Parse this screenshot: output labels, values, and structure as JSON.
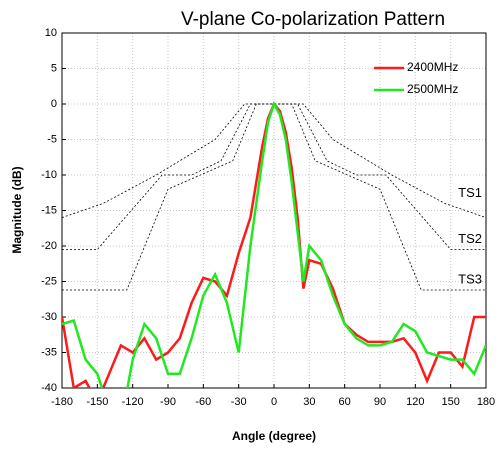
{
  "chart_data": {
    "type": "line",
    "title": "V-plane Co-polarization Pattern",
    "xlabel": "Angle (degree)",
    "ylabel": "Magnitude (dB)",
    "x": [
      -180,
      -170,
      -160,
      -150,
      -140,
      -130,
      -120,
      -110,
      -100,
      -90,
      -80,
      -70,
      -60,
      -50,
      -40,
      -30,
      -20,
      -15,
      -10,
      -5,
      0,
      5,
      10,
      15,
      20,
      25,
      30,
      40,
      50,
      60,
      70,
      80,
      90,
      100,
      110,
      120,
      130,
      140,
      150,
      160,
      170,
      180
    ],
    "series": [
      {
        "name": "2400MHz",
        "color": "#ff1a1a",
        "values": [
          -30,
          -40,
          -39,
          -42,
          -38,
          -34,
          -35,
          -33,
          -36,
          -35,
          -33,
          -28,
          -24.5,
          -25,
          -27,
          -21,
          -16,
          -11,
          -6,
          -2,
          0,
          -1,
          -4,
          -9,
          -16,
          -26,
          -22,
          -22.5,
          -26,
          -31,
          -32.5,
          -33.5,
          -33.5,
          -33.5,
          -33,
          -35,
          -39,
          -35,
          -35,
          -37,
          -30,
          -30
        ]
      },
      {
        "name": "2500MHz",
        "color": "#22e822",
        "values": [
          -31,
          -30.5,
          -36,
          -38,
          -43,
          -45,
          -36,
          -31,
          -33,
          -38,
          -38,
          -33,
          -27,
          -24,
          -28,
          -35,
          -20,
          -14,
          -8,
          -2.5,
          0,
          -1.5,
          -5,
          -11,
          -18,
          -25,
          -20,
          -22,
          -27,
          -31,
          -33,
          -34,
          -34,
          -33.5,
          -31,
          -32,
          -35,
          -35.5,
          -36,
          -36,
          -38,
          -34
        ]
      }
    ],
    "templates": [
      {
        "name": "TS1",
        "x": [
          -180,
          -145,
          -100,
          -50,
          -25,
          25,
          50,
          100,
          145,
          180
        ],
        "values": [
          -16,
          -14,
          -10,
          -5,
          0,
          0,
          -5,
          -10,
          -14,
          -16
        ]
      },
      {
        "name": "TS2",
        "x": [
          -180,
          -150,
          -95,
          -70,
          -45,
          -20,
          20,
          45,
          70,
          95,
          150,
          180
        ],
        "values": [
          -20.5,
          -20.5,
          -10,
          -10,
          -8,
          0,
          0,
          -8,
          -10,
          -10,
          -20.5,
          -20.5
        ]
      },
      {
        "name": "TS3",
        "x": [
          -180,
          -125,
          -90,
          -35,
          -15,
          15,
          35,
          90,
          125,
          180
        ],
        "values": [
          -26.2,
          -26.2,
          -12,
          -8,
          0,
          0,
          -8,
          -12,
          -26.2,
          -26.2
        ]
      }
    ],
    "xlim": [
      -180,
      180
    ],
    "ylim": [
      -40,
      10
    ],
    "xticks": [
      -180,
      -150,
      -120,
      -90,
      -60,
      -30,
      0,
      30,
      60,
      90,
      120,
      150,
      180
    ],
    "yticks": [
      -40,
      -35,
      -30,
      -25,
      -20,
      -15,
      -10,
      -5,
      0,
      5,
      10
    ],
    "grid": true,
    "legend": "upper right"
  }
}
